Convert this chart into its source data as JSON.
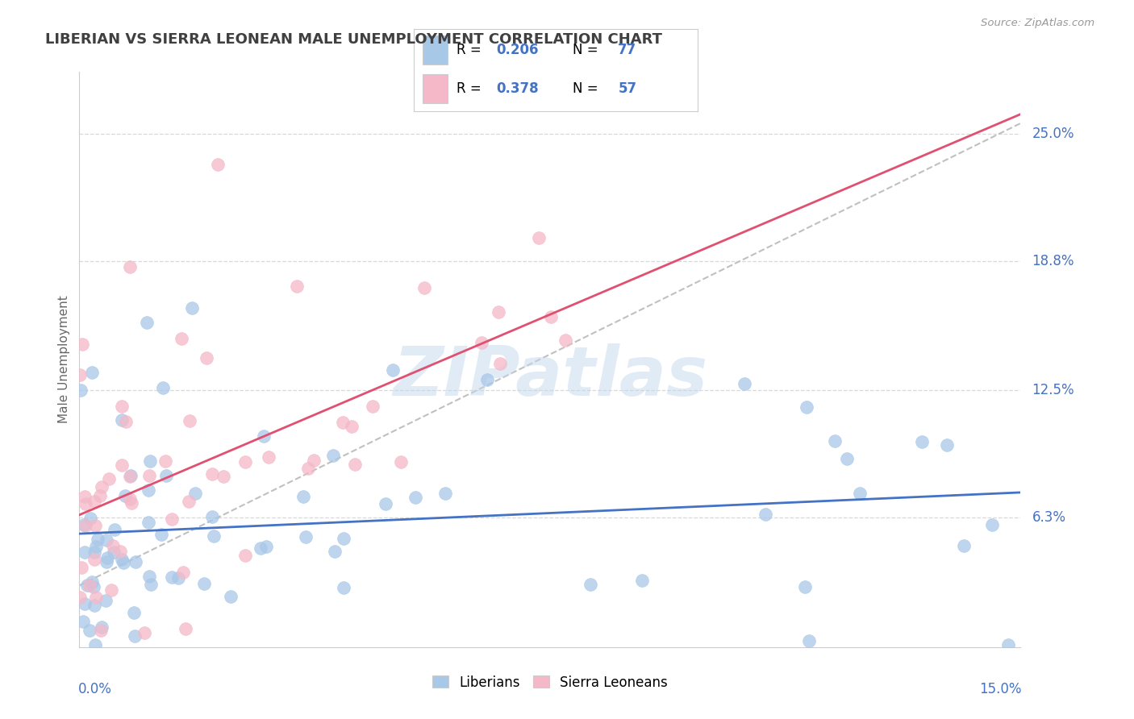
{
  "title": "LIBERIAN VS SIERRA LEONEAN MALE UNEMPLOYMENT CORRELATION CHART",
  "source": "Source: ZipAtlas.com",
  "ylabel": "Male Unemployment",
  "ytick_labels": [
    "6.3%",
    "12.5%",
    "18.8%",
    "25.0%"
  ],
  "ytick_values": [
    0.063,
    0.125,
    0.188,
    0.25
  ],
  "xmin": 0.0,
  "xmax": 0.15,
  "ymin": 0.0,
  "ymax": 0.28,
  "liberian_R": "0.206",
  "liberian_N": "77",
  "sierraleone_R": "0.378",
  "sierraleone_N": "57",
  "liberian_color": "#a8c8e8",
  "sierraleone_color": "#f4b8c8",
  "liberian_line_color": "#4472c4",
  "sierraleone_line_color": "#e05070",
  "ref_line_color": "#c0c0c0",
  "grid_color": "#d8d8d8",
  "axis_color": "#4472c4",
  "title_color": "#404040",
  "watermark": "ZIPatlas",
  "bg_color": "#ffffff",
  "legend_border_color": "#cccccc",
  "legend_text_color": "#000000",
  "legend_value_color": "#4472c4"
}
